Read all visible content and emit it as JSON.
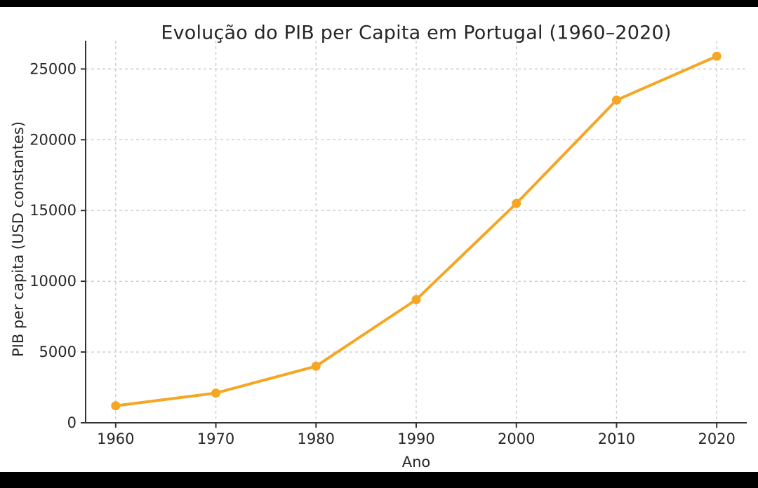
{
  "frame": {
    "background_color": "#000000",
    "chart_background_color": "#ffffff"
  },
  "styles": {
    "text_color": "#262626",
    "spine_color": "#333333",
    "grid_color": "#cccccc",
    "accent_color": "#F5A623"
  },
  "chart_data": {
    "type": "line",
    "title": "Evolução do PIB per Capita em Portugal (1960–2020)",
    "xlabel": "Ano",
    "ylabel": "PIB per capita (USD constantes)",
    "x": [
      1960,
      1970,
      1980,
      1990,
      2000,
      2010,
      2020
    ],
    "series": [
      {
        "name": "PIB per capita",
        "values": [
          1200,
          2100,
          4000,
          8700,
          15500,
          22800,
          25900
        ],
        "color": "#F5A623"
      }
    ],
    "xticks": [
      1960,
      1970,
      1980,
      1990,
      2000,
      2010,
      2020
    ],
    "yticks": [
      0,
      5000,
      10000,
      15000,
      20000,
      25000
    ],
    "xlim": [
      1957,
      2023
    ],
    "ylim": [
      0,
      27000
    ],
    "grid": true,
    "grid_style": "dashed",
    "marker": "circle",
    "legend_position": "none"
  }
}
